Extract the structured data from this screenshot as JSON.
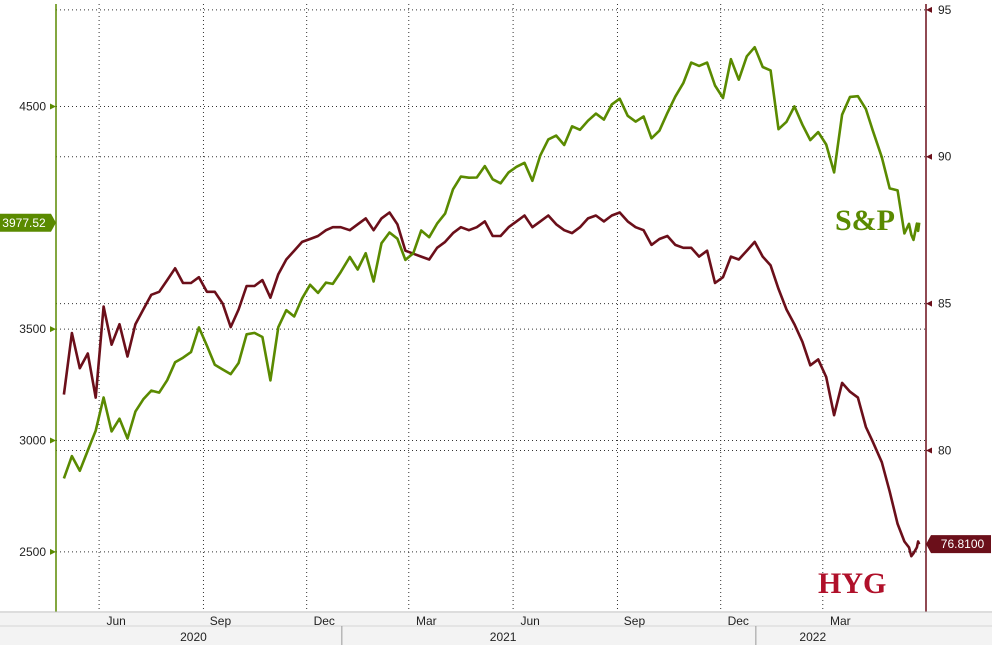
{
  "chart_data": {
    "type": "line",
    "series": [
      {
        "name": "S&P",
        "axis": "left",
        "color": "#5a8a00",
        "points": [
          [
            "2020-05-01",
            2830
          ],
          [
            "2020-05-08",
            2930
          ],
          [
            "2020-05-15",
            2864
          ],
          [
            "2020-05-22",
            2955
          ],
          [
            "2020-05-29",
            3044
          ],
          [
            "2020-06-05",
            3193
          ],
          [
            "2020-06-12",
            3041
          ],
          [
            "2020-06-19",
            3098
          ],
          [
            "2020-06-26",
            3009
          ],
          [
            "2020-07-03",
            3130
          ],
          [
            "2020-07-10",
            3185
          ],
          [
            "2020-07-17",
            3224
          ],
          [
            "2020-07-24",
            3215
          ],
          [
            "2020-07-31",
            3271
          ],
          [
            "2020-08-07",
            3351
          ],
          [
            "2020-08-14",
            3372
          ],
          [
            "2020-08-21",
            3397
          ],
          [
            "2020-08-28",
            3508
          ],
          [
            "2020-09-04",
            3426
          ],
          [
            "2020-09-11",
            3340
          ],
          [
            "2020-09-18",
            3319
          ],
          [
            "2020-09-25",
            3298
          ],
          [
            "2020-10-02",
            3348
          ],
          [
            "2020-10-09",
            3477
          ],
          [
            "2020-10-16",
            3483
          ],
          [
            "2020-10-23",
            3465
          ],
          [
            "2020-10-30",
            3270
          ],
          [
            "2020-11-06",
            3509
          ],
          [
            "2020-11-13",
            3585
          ],
          [
            "2020-11-20",
            3557
          ],
          [
            "2020-11-27",
            3638
          ],
          [
            "2020-12-04",
            3699
          ],
          [
            "2020-12-11",
            3663
          ],
          [
            "2020-12-18",
            3709
          ],
          [
            "2020-12-24",
            3703
          ],
          [
            "2020-12-31",
            3756
          ],
          [
            "2021-01-08",
            3824
          ],
          [
            "2021-01-15",
            3768
          ],
          [
            "2021-01-22",
            3841
          ],
          [
            "2021-01-29",
            3714
          ],
          [
            "2021-02-05",
            3886
          ],
          [
            "2021-02-12",
            3934
          ],
          [
            "2021-02-19",
            3906
          ],
          [
            "2021-02-26",
            3811
          ],
          [
            "2021-03-05",
            3841
          ],
          [
            "2021-03-12",
            3943
          ],
          [
            "2021-03-19",
            3913
          ],
          [
            "2021-03-26",
            3974
          ],
          [
            "2021-04-02",
            4019
          ],
          [
            "2021-04-09",
            4128
          ],
          [
            "2021-04-16",
            4185
          ],
          [
            "2021-04-23",
            4180
          ],
          [
            "2021-04-30",
            4181
          ],
          [
            "2021-05-07",
            4232
          ],
          [
            "2021-05-14",
            4173
          ],
          [
            "2021-05-21",
            4155
          ],
          [
            "2021-05-28",
            4204
          ],
          [
            "2021-06-04",
            4229
          ],
          [
            "2021-06-11",
            4247
          ],
          [
            "2021-06-18",
            4166
          ],
          [
            "2021-06-25",
            4280
          ],
          [
            "2021-07-02",
            4352
          ],
          [
            "2021-07-09",
            4369
          ],
          [
            "2021-07-16",
            4327
          ],
          [
            "2021-07-23",
            4411
          ],
          [
            "2021-07-30",
            4395
          ],
          [
            "2021-08-06",
            4436
          ],
          [
            "2021-08-13",
            4468
          ],
          [
            "2021-08-20",
            4441
          ],
          [
            "2021-08-27",
            4509
          ],
          [
            "2021-09-03",
            4535
          ],
          [
            "2021-09-10",
            4458
          ],
          [
            "2021-09-17",
            4432
          ],
          [
            "2021-09-24",
            4455
          ],
          [
            "2021-10-01",
            4357
          ],
          [
            "2021-10-08",
            4391
          ],
          [
            "2021-10-15",
            4471
          ],
          [
            "2021-10-22",
            4544
          ],
          [
            "2021-10-29",
            4605
          ],
          [
            "2021-11-05",
            4697
          ],
          [
            "2021-11-12",
            4682
          ],
          [
            "2021-11-19",
            4697
          ],
          [
            "2021-11-26",
            4594
          ],
          [
            "2021-12-03",
            4538
          ],
          [
            "2021-12-10",
            4712
          ],
          [
            "2021-12-17",
            4620
          ],
          [
            "2021-12-24",
            4725
          ],
          [
            "2021-12-31",
            4766
          ],
          [
            "2022-01-07",
            4677
          ],
          [
            "2022-01-14",
            4662
          ],
          [
            "2022-01-21",
            4398
          ],
          [
            "2022-01-28",
            4431
          ],
          [
            "2022-02-04",
            4500
          ],
          [
            "2022-02-11",
            4418
          ],
          [
            "2022-02-18",
            4349
          ],
          [
            "2022-02-25",
            4385
          ],
          [
            "2022-03-04",
            4329
          ],
          [
            "2022-03-11",
            4204
          ],
          [
            "2022-03-18",
            4463
          ],
          [
            "2022-03-25",
            4543
          ],
          [
            "2022-04-01",
            4546
          ],
          [
            "2022-04-08",
            4488
          ],
          [
            "2022-04-14",
            4393
          ],
          [
            "2022-04-22",
            4272
          ],
          [
            "2022-04-29",
            4132
          ],
          [
            "2022-05-06",
            4123
          ],
          [
            "2022-05-12",
            3930
          ],
          [
            "2022-05-16",
            3973
          ],
          [
            "2022-05-18",
            3924
          ],
          [
            "2022-05-20",
            3901
          ],
          [
            "2022-05-23",
            3974
          ],
          [
            "2022-05-24",
            3941
          ],
          [
            "2022-05-25",
            3978
          ]
        ]
      },
      {
        "name": "HYG",
        "axis": "right",
        "color": "#6b0f1a",
        "points": [
          [
            "2020-05-01",
            81.9
          ],
          [
            "2020-05-08",
            84.0
          ],
          [
            "2020-05-15",
            82.8
          ],
          [
            "2020-05-22",
            83.3
          ],
          [
            "2020-05-29",
            81.8
          ],
          [
            "2020-06-05",
            84.9
          ],
          [
            "2020-06-12",
            83.6
          ],
          [
            "2020-06-19",
            84.3
          ],
          [
            "2020-06-26",
            83.2
          ],
          [
            "2020-07-03",
            84.3
          ],
          [
            "2020-07-10",
            84.8
          ],
          [
            "2020-07-17",
            85.3
          ],
          [
            "2020-07-24",
            85.4
          ],
          [
            "2020-07-31",
            85.8
          ],
          [
            "2020-08-07",
            86.2
          ],
          [
            "2020-08-14",
            85.7
          ],
          [
            "2020-08-21",
            85.7
          ],
          [
            "2020-08-28",
            85.9
          ],
          [
            "2020-09-04",
            85.4
          ],
          [
            "2020-09-11",
            85.4
          ],
          [
            "2020-09-18",
            85.0
          ],
          [
            "2020-09-25",
            84.2
          ],
          [
            "2020-10-02",
            84.8
          ],
          [
            "2020-10-09",
            85.6
          ],
          [
            "2020-10-16",
            85.6
          ],
          [
            "2020-10-23",
            85.8
          ],
          [
            "2020-10-30",
            85.2
          ],
          [
            "2020-11-06",
            86.0
          ],
          [
            "2020-11-13",
            86.5
          ],
          [
            "2020-11-20",
            86.8
          ],
          [
            "2020-11-27",
            87.1
          ],
          [
            "2020-12-04",
            87.2
          ],
          [
            "2020-12-11",
            87.3
          ],
          [
            "2020-12-18",
            87.5
          ],
          [
            "2020-12-24",
            87.6
          ],
          [
            "2020-12-31",
            87.6
          ],
          [
            "2021-01-08",
            87.5
          ],
          [
            "2021-01-15",
            87.7
          ],
          [
            "2021-01-22",
            87.9
          ],
          [
            "2021-01-29",
            87.5
          ],
          [
            "2021-02-05",
            87.9
          ],
          [
            "2021-02-12",
            88.1
          ],
          [
            "2021-02-19",
            87.7
          ],
          [
            "2021-02-26",
            86.8
          ],
          [
            "2021-03-05",
            86.7
          ],
          [
            "2021-03-12",
            86.6
          ],
          [
            "2021-03-19",
            86.5
          ],
          [
            "2021-03-26",
            86.9
          ],
          [
            "2021-04-02",
            87.1
          ],
          [
            "2021-04-09",
            87.4
          ],
          [
            "2021-04-16",
            87.6
          ],
          [
            "2021-04-23",
            87.5
          ],
          [
            "2021-04-30",
            87.6
          ],
          [
            "2021-05-07",
            87.8
          ],
          [
            "2021-05-14",
            87.3
          ],
          [
            "2021-05-21",
            87.3
          ],
          [
            "2021-05-28",
            87.6
          ],
          [
            "2021-06-04",
            87.8
          ],
          [
            "2021-06-11",
            88.0
          ],
          [
            "2021-06-18",
            87.6
          ],
          [
            "2021-06-25",
            87.8
          ],
          [
            "2021-07-02",
            88.0
          ],
          [
            "2021-07-09",
            87.7
          ],
          [
            "2021-07-16",
            87.5
          ],
          [
            "2021-07-23",
            87.4
          ],
          [
            "2021-07-30",
            87.6
          ],
          [
            "2021-08-06",
            87.9
          ],
          [
            "2021-08-13",
            88.0
          ],
          [
            "2021-08-20",
            87.8
          ],
          [
            "2021-08-27",
            88.0
          ],
          [
            "2021-09-03",
            88.1
          ],
          [
            "2021-09-10",
            87.8
          ],
          [
            "2021-09-17",
            87.6
          ],
          [
            "2021-09-24",
            87.5
          ],
          [
            "2021-10-01",
            87.0
          ],
          [
            "2021-10-08",
            87.2
          ],
          [
            "2021-10-15",
            87.3
          ],
          [
            "2021-10-22",
            87.0
          ],
          [
            "2021-10-29",
            86.9
          ],
          [
            "2021-11-05",
            86.9
          ],
          [
            "2021-11-12",
            86.6
          ],
          [
            "2021-11-19",
            86.8
          ],
          [
            "2021-11-26",
            85.7
          ],
          [
            "2021-12-03",
            85.9
          ],
          [
            "2021-12-10",
            86.6
          ],
          [
            "2021-12-17",
            86.5
          ],
          [
            "2021-12-24",
            86.8
          ],
          [
            "2021-12-31",
            87.1
          ],
          [
            "2022-01-07",
            86.6
          ],
          [
            "2022-01-14",
            86.3
          ],
          [
            "2022-01-21",
            85.5
          ],
          [
            "2022-01-28",
            84.8
          ],
          [
            "2022-02-04",
            84.3
          ],
          [
            "2022-02-11",
            83.7
          ],
          [
            "2022-02-18",
            82.9
          ],
          [
            "2022-02-25",
            83.1
          ],
          [
            "2022-03-04",
            82.5
          ],
          [
            "2022-03-11",
            81.2
          ],
          [
            "2022-03-18",
            82.3
          ],
          [
            "2022-03-25",
            82.0
          ],
          [
            "2022-04-01",
            81.8
          ],
          [
            "2022-04-08",
            80.8
          ],
          [
            "2022-04-14",
            80.3
          ],
          [
            "2022-04-22",
            79.6
          ],
          [
            "2022-04-29",
            78.6
          ],
          [
            "2022-05-06",
            77.5
          ],
          [
            "2022-05-12",
            76.9
          ],
          [
            "2022-05-16",
            76.7
          ],
          [
            "2022-05-18",
            76.4
          ],
          [
            "2022-05-20",
            76.5
          ],
          [
            "2022-05-23",
            76.7
          ],
          [
            "2022-05-24",
            76.9
          ],
          [
            "2022-05-25",
            76.81
          ]
        ]
      }
    ],
    "left_axis": {
      "color": "#5a8a00",
      "ylim": [
        2230,
        4960
      ],
      "ticks": [
        2500,
        3000,
        3500,
        4500
      ],
      "last_value_label": "3977.52",
      "last_value": 3977.52
    },
    "right_axis": {
      "color": "#6b0f1a",
      "ylim": [
        74.5,
        95.2
      ],
      "ticks": [
        80,
        85,
        90,
        95
      ],
      "last_value_label": "76.8100",
      "last_value": 76.81
    },
    "x_axis": {
      "range": [
        "2020-04-24",
        "2022-05-31"
      ],
      "month_ticks": [
        {
          "label": "Jun",
          "date": "2020-06-01"
        },
        {
          "label": "Sep",
          "date": "2020-09-01"
        },
        {
          "label": "Dec",
          "date": "2020-12-01"
        },
        {
          "label": "Mar",
          "date": "2021-03-01"
        },
        {
          "label": "Jun",
          "date": "2021-06-01"
        },
        {
          "label": "Sep",
          "date": "2021-09-01"
        },
        {
          "label": "Dec",
          "date": "2021-12-01"
        },
        {
          "label": "Mar",
          "date": "2022-03-01"
        }
      ],
      "year_labels": [
        {
          "label": "2020",
          "date": "2020-09-01"
        },
        {
          "label": "2021",
          "date": "2021-06-01"
        },
        {
          "label": "2022",
          "date": "2022-03-01"
        }
      ],
      "year_separators": [
        "2021-01-01",
        "2022-01-01"
      ]
    },
    "annotations": {
      "sp_label": "S&P",
      "hyg_label": "HYG"
    },
    "grid": true
  }
}
